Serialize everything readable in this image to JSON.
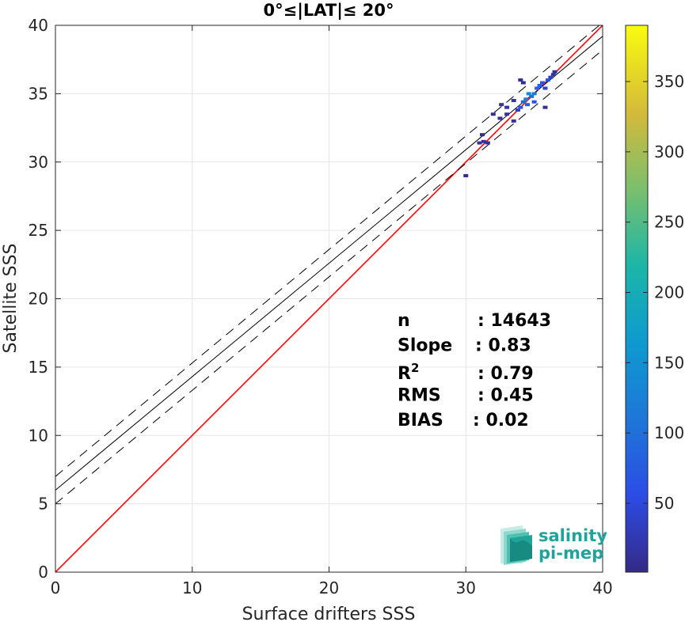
{
  "chart_data": {
    "type": "scatter",
    "title": "0°≤|LAT|≤ 20°",
    "xlabel": "Surface drifters SSS",
    "ylabel": "Satellite SSS",
    "xlim": [
      0,
      40
    ],
    "ylim": [
      0,
      40
    ],
    "xticks": [
      "0",
      "10",
      "20",
      "30",
      "40"
    ],
    "yticks": [
      "0",
      "5",
      "10",
      "15",
      "20",
      "25",
      "30",
      "35",
      "40"
    ],
    "grid": true,
    "lines": [
      {
        "role": "one-to-one",
        "color": "#ff0000",
        "x": [
          0,
          40
        ],
        "y": [
          0,
          40
        ]
      },
      {
        "role": "regression",
        "color": "#000000",
        "x": [
          0,
          40
        ],
        "y": [
          6.0,
          39.2
        ]
      },
      {
        "role": "upper-bound",
        "color": "#000000",
        "style": "dashed",
        "x": [
          0,
          40
        ],
        "y": [
          7.0,
          40.2
        ]
      },
      {
        "role": "lower-bound",
        "color": "#000000",
        "style": "dashed",
        "x": [
          0,
          40
        ],
        "y": [
          5.0,
          38.2
        ]
      }
    ],
    "colorbar": {
      "ticks": [
        "50",
        "100",
        "150",
        "200",
        "250",
        "300",
        "350"
      ],
      "tick_values": [
        50,
        100,
        150,
        200,
        250,
        300,
        350
      ],
      "range": [
        1,
        390
      ]
    },
    "stats": [
      {
        "label": "n",
        "value": ": 14643"
      },
      {
        "label": "Slope",
        "value": ": 0.83"
      },
      {
        "label": "R",
        "sup": "2",
        "value": ": 0.79"
      },
      {
        "label": "RMS",
        "value": ": 0.45"
      },
      {
        "label": "BIAS",
        "value": ": 0.02"
      }
    ],
    "density_points": [
      {
        "x": 30.0,
        "y": 29.0,
        "c": 5
      },
      {
        "x": 31.0,
        "y": 31.4,
        "c": 10
      },
      {
        "x": 31.3,
        "y": 31.5,
        "c": 15
      },
      {
        "x": 31.6,
        "y": 31.4,
        "c": 10
      },
      {
        "x": 31.2,
        "y": 32.0,
        "c": 5
      },
      {
        "x": 32.0,
        "y": 33.5,
        "c": 8
      },
      {
        "x": 32.5,
        "y": 33.2,
        "c": 10
      },
      {
        "x": 33.0,
        "y": 33.5,
        "c": 12
      },
      {
        "x": 33.0,
        "y": 34.0,
        "c": 15
      },
      {
        "x": 32.6,
        "y": 34.2,
        "c": 10
      },
      {
        "x": 33.5,
        "y": 33.0,
        "c": 10
      },
      {
        "x": 33.5,
        "y": 34.5,
        "c": 20
      },
      {
        "x": 33.8,
        "y": 33.8,
        "c": 30
      },
      {
        "x": 34.0,
        "y": 34.0,
        "c": 60
      },
      {
        "x": 34.2,
        "y": 34.4,
        "c": 90
      },
      {
        "x": 34.4,
        "y": 34.6,
        "c": 120
      },
      {
        "x": 34.5,
        "y": 34.2,
        "c": 70
      },
      {
        "x": 34.6,
        "y": 35.0,
        "c": 140
      },
      {
        "x": 34.8,
        "y": 34.8,
        "c": 100
      },
      {
        "x": 35.0,
        "y": 35.0,
        "c": 120
      },
      {
        "x": 35.2,
        "y": 35.4,
        "c": 90
      },
      {
        "x": 35.0,
        "y": 34.4,
        "c": 60
      },
      {
        "x": 35.4,
        "y": 35.6,
        "c": 80
      },
      {
        "x": 35.6,
        "y": 35.8,
        "c": 70
      },
      {
        "x": 35.8,
        "y": 35.4,
        "c": 40
      },
      {
        "x": 36.0,
        "y": 36.0,
        "c": 60
      },
      {
        "x": 36.2,
        "y": 36.2,
        "c": 40
      },
      {
        "x": 36.4,
        "y": 36.4,
        "c": 20
      },
      {
        "x": 36.5,
        "y": 36.6,
        "c": 10
      },
      {
        "x": 34.2,
        "y": 35.8,
        "c": 8
      },
      {
        "x": 35.8,
        "y": 34.0,
        "c": 8
      },
      {
        "x": 34.0,
        "y": 36.0,
        "c": 5
      }
    ]
  },
  "logo": {
    "line1": "salinity",
    "line2": "pi-mep"
  }
}
